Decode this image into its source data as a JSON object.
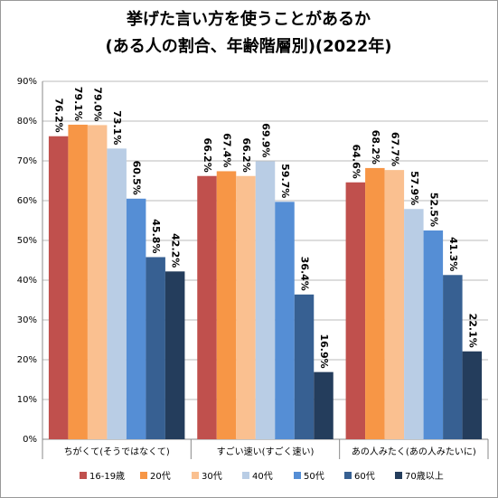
{
  "chart_data": {
    "type": "bar",
    "title": "挙げた言い方を使うことがあるか",
    "subtitle": "(ある人の割合、年齢階層別)(2022年)",
    "categories": [
      "ちがくて(そうではなくて)",
      "すごい速い(すごく速い)",
      "あの人みたく(あの人みたいに)"
    ],
    "series": [
      {
        "name": "16-19歳",
        "color": "#c0504d",
        "values": [
          76.2,
          66.2,
          64.6
        ],
        "value_labels": [
          "76.2%",
          "66.2%",
          "64.6%"
        ]
      },
      {
        "name": "20代",
        "color": "#f79646",
        "values": [
          79.1,
          67.4,
          68.2
        ],
        "value_labels": [
          "79.1%",
          "67.4%",
          "68.2%"
        ]
      },
      {
        "name": "30代",
        "color": "#fac090",
        "values": [
          79.0,
          66.2,
          67.7
        ],
        "value_labels": [
          "79.0%",
          "66.2%",
          "67.7%"
        ]
      },
      {
        "name": "40代",
        "color": "#b9cde5",
        "values": [
          73.1,
          69.9,
          57.9
        ],
        "value_labels": [
          "73.1%",
          "69.9%",
          "57.9%"
        ]
      },
      {
        "name": "50代",
        "color": "#558ed5",
        "values": [
          60.5,
          59.7,
          52.5
        ],
        "value_labels": [
          "60.5%",
          "59.7%",
          "52.5%"
        ]
      },
      {
        "name": "60代",
        "color": "#376092",
        "values": [
          45.8,
          36.4,
          41.3
        ],
        "value_labels": [
          "45.8%",
          "36.4%",
          "41.3%"
        ]
      },
      {
        "name": "70歳以上",
        "color": "#243d5c",
        "values": [
          42.2,
          16.9,
          22.1
        ],
        "value_labels": [
          "42.2%",
          "16.9%",
          "22.1%"
        ]
      }
    ],
    "ylim": [
      0,
      90
    ],
    "yticks": [
      {
        "value": 0,
        "label": "0%"
      },
      {
        "value": 10,
        "label": "10%"
      },
      {
        "value": 20,
        "label": "20%"
      },
      {
        "value": 30,
        "label": "30%"
      },
      {
        "value": 40,
        "label": "40%"
      },
      {
        "value": 50,
        "label": "50%"
      },
      {
        "value": 60,
        "label": "60%"
      },
      {
        "value": 70,
        "label": "70%"
      },
      {
        "value": 80,
        "label": "80%"
      },
      {
        "value": 90,
        "label": "90%"
      }
    ],
    "grid": true
  }
}
